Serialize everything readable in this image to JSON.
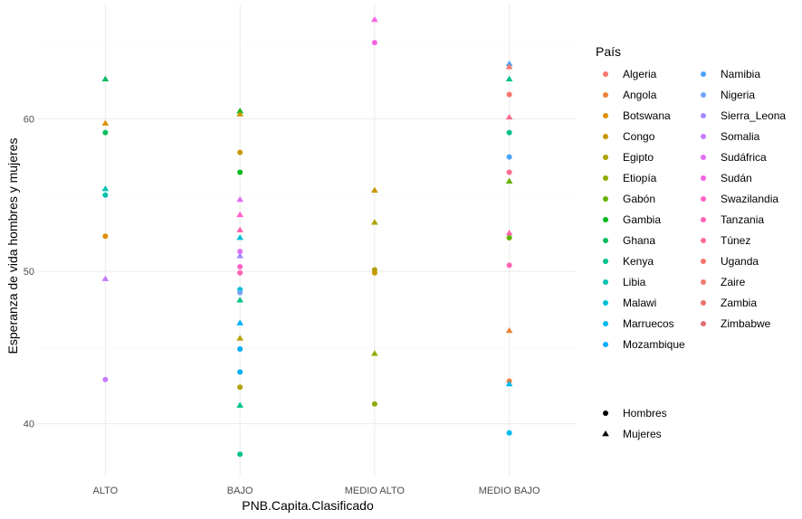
{
  "chart_data": {
    "type": "scatter",
    "xlabel": "PNB.Capita.Clasificado",
    "ylabel": "Esperanza de vida hombres y mujeres",
    "categories": [
      "ALTO",
      "BAJO",
      "MEDIO ALTO",
      "MEDIO BAJO"
    ],
    "ylim": [
      36.6,
      67.5
    ],
    "yticks": [
      40,
      50,
      60
    ],
    "grid": true,
    "legend_color_title": "País",
    "legend_placement": "right",
    "countries": [
      {
        "name": "Algeria",
        "color": "#F8766D"
      },
      {
        "name": "Angola",
        "color": "#EC8239"
      },
      {
        "name": "Botswana",
        "color": "#DB8E00"
      },
      {
        "name": "Congo",
        "color": "#C79800"
      },
      {
        "name": "Egipto",
        "color": "#AEA200"
      },
      {
        "name": "Etiopía",
        "color": "#8FAA00"
      },
      {
        "name": "Gabón",
        "color": "#64B200"
      },
      {
        "name": "Gambia",
        "color": "#00B81B"
      },
      {
        "name": "Ghana",
        "color": "#00BD5C"
      },
      {
        "name": "Kenya",
        "color": "#00C08B"
      },
      {
        "name": "Libia",
        "color": "#00C1B2"
      },
      {
        "name": "Malawi",
        "color": "#00BFD4"
      },
      {
        "name": "Marruecos",
        "color": "#00B9F1"
      },
      {
        "name": "Mozambique",
        "color": "#00ADFA"
      },
      {
        "name": "Namibia",
        "color": "#4AA2F9"
      },
      {
        "name": "Nigeria",
        "color": "#73A2FF"
      },
      {
        "name": "Sierra_Leona",
        "color": "#A58AFF"
      },
      {
        "name": "Somalia",
        "color": "#C77CFF"
      },
      {
        "name": "Sudáfrica",
        "color": "#E46DF6"
      },
      {
        "name": "Sudán",
        "color": "#F564E3"
      },
      {
        "name": "Swazilandia",
        "color": "#FF61C9"
      },
      {
        "name": "Tanzania",
        "color": "#FF64B0"
      },
      {
        "name": "Túnez",
        "color": "#FF6C91"
      },
      {
        "name": "Uganda",
        "color": "#F8766D"
      },
      {
        "name": "Zaire",
        "color": "#EE7E6B"
      },
      {
        "name": "Zambia",
        "color": "#E87368"
      },
      {
        "name": "Zimbabwe",
        "color": "#E26E73"
      }
    ],
    "shape_legend": [
      {
        "label": "Hombres",
        "shape": "circle"
      },
      {
        "label": "Mujeres",
        "shape": "triangle"
      }
    ],
    "points": [
      {
        "x": "ALTO",
        "y": 62.6,
        "shape": "triangle",
        "color": "#00BD5C"
      },
      {
        "x": "ALTO",
        "y": 59.7,
        "shape": "triangle",
        "color": "#DB8E00"
      },
      {
        "x": "ALTO",
        "y": 59.1,
        "shape": "circle",
        "color": "#00BD5C"
      },
      {
        "x": "ALTO",
        "y": 55.4,
        "shape": "triangle",
        "color": "#00C1B2"
      },
      {
        "x": "ALTO",
        "y": 55.0,
        "shape": "circle",
        "color": "#00C1B2"
      },
      {
        "x": "ALTO",
        "y": 52.3,
        "shape": "circle",
        "color": "#DB8E00"
      },
      {
        "x": "ALTO",
        "y": 49.5,
        "shape": "triangle",
        "color": "#C77CFF"
      },
      {
        "x": "ALTO",
        "y": 42.9,
        "shape": "circle",
        "color": "#C77CFF"
      },
      {
        "x": "BAJO",
        "y": 60.5,
        "shape": "triangle",
        "color": "#00B81B"
      },
      {
        "x": "BAJO",
        "y": 60.3,
        "shape": "triangle",
        "color": "#C79800"
      },
      {
        "x": "BAJO",
        "y": 57.8,
        "shape": "circle",
        "color": "#C79800"
      },
      {
        "x": "BAJO",
        "y": 56.5,
        "shape": "circle",
        "color": "#00B81B"
      },
      {
        "x": "BAJO",
        "y": 54.7,
        "shape": "triangle",
        "color": "#E46DF6"
      },
      {
        "x": "BAJO",
        "y": 53.7,
        "shape": "triangle",
        "color": "#FF61C9"
      },
      {
        "x": "BAJO",
        "y": 52.7,
        "shape": "triangle",
        "color": "#FF64B0"
      },
      {
        "x": "BAJO",
        "y": 52.2,
        "shape": "triangle",
        "color": "#00BFD4"
      },
      {
        "x": "BAJO",
        "y": 51.3,
        "shape": "circle",
        "color": "#E46DF6"
      },
      {
        "x": "BAJO",
        "y": 51.0,
        "shape": "triangle",
        "color": "#A58AFF"
      },
      {
        "x": "BAJO",
        "y": 50.3,
        "shape": "circle",
        "color": "#FF61C9"
      },
      {
        "x": "BAJO",
        "y": 49.9,
        "shape": "circle",
        "color": "#FF64B0"
      },
      {
        "x": "BAJO",
        "y": 48.8,
        "shape": "circle",
        "color": "#00BFD4"
      },
      {
        "x": "BAJO",
        "y": 48.6,
        "shape": "circle",
        "color": "#73A2FF"
      },
      {
        "x": "BAJO",
        "y": 48.1,
        "shape": "triangle",
        "color": "#00C08B"
      },
      {
        "x": "BAJO",
        "y": 46.6,
        "shape": "triangle",
        "color": "#00ADFA"
      },
      {
        "x": "BAJO",
        "y": 45.6,
        "shape": "triangle",
        "color": "#AEA200"
      },
      {
        "x": "BAJO",
        "y": 44.9,
        "shape": "circle",
        "color": "#00ADFA"
      },
      {
        "x": "BAJO",
        "y": 43.4,
        "shape": "circle",
        "color": "#00ADFA"
      },
      {
        "x": "BAJO",
        "y": 42.4,
        "shape": "circle",
        "color": "#AEA200"
      },
      {
        "x": "BAJO",
        "y": 41.2,
        "shape": "triangle",
        "color": "#00C08B"
      },
      {
        "x": "BAJO",
        "y": 38.0,
        "shape": "circle",
        "color": "#00C08B"
      },
      {
        "x": "MEDIO ALTO",
        "y": 66.5,
        "shape": "triangle",
        "color": "#F564E3"
      },
      {
        "x": "MEDIO ALTO",
        "y": 65.0,
        "shape": "circle",
        "color": "#F564E3"
      },
      {
        "x": "MEDIO ALTO",
        "y": 55.3,
        "shape": "triangle",
        "color": "#C79800"
      },
      {
        "x": "MEDIO ALTO",
        "y": 53.2,
        "shape": "triangle",
        "color": "#AEA200"
      },
      {
        "x": "MEDIO ALTO",
        "y": 50.1,
        "shape": "circle",
        "color": "#AEA200"
      },
      {
        "x": "MEDIO ALTO",
        "y": 49.9,
        "shape": "circle",
        "color": "#C79800"
      },
      {
        "x": "MEDIO ALTO",
        "y": 44.6,
        "shape": "triangle",
        "color": "#8FAA00"
      },
      {
        "x": "MEDIO ALTO",
        "y": 41.3,
        "shape": "circle",
        "color": "#8FAA00"
      },
      {
        "x": "MEDIO BAJO",
        "y": 63.6,
        "shape": "triangle",
        "color": "#4AA2F9"
      },
      {
        "x": "MEDIO BAJO",
        "y": 63.4,
        "shape": "triangle",
        "color": "#F8766D"
      },
      {
        "x": "MEDIO BAJO",
        "y": 62.6,
        "shape": "triangle",
        "color": "#00C08B"
      },
      {
        "x": "MEDIO BAJO",
        "y": 61.6,
        "shape": "circle",
        "color": "#F8766D"
      },
      {
        "x": "MEDIO BAJO",
        "y": 60.1,
        "shape": "triangle",
        "color": "#FF6C91"
      },
      {
        "x": "MEDIO BAJO",
        "y": 59.1,
        "shape": "circle",
        "color": "#00C08B"
      },
      {
        "x": "MEDIO BAJO",
        "y": 57.5,
        "shape": "circle",
        "color": "#4AA2F9"
      },
      {
        "x": "MEDIO BAJO",
        "y": 56.5,
        "shape": "circle",
        "color": "#FF6C91"
      },
      {
        "x": "MEDIO BAJO",
        "y": 55.9,
        "shape": "triangle",
        "color": "#64B200"
      },
      {
        "x": "MEDIO BAJO",
        "y": 52.5,
        "shape": "triangle",
        "color": "#FF64B0"
      },
      {
        "x": "MEDIO BAJO",
        "y": 52.2,
        "shape": "circle",
        "color": "#64B200"
      },
      {
        "x": "MEDIO BAJO",
        "y": 50.4,
        "shape": "circle",
        "color": "#FF64B0"
      },
      {
        "x": "MEDIO BAJO",
        "y": 46.1,
        "shape": "triangle",
        "color": "#EC8239"
      },
      {
        "x": "MEDIO BAJO",
        "y": 42.8,
        "shape": "circle",
        "color": "#EC8239"
      },
      {
        "x": "MEDIO BAJO",
        "y": 42.6,
        "shape": "triangle",
        "color": "#00B9F1"
      },
      {
        "x": "MEDIO BAJO",
        "y": 39.4,
        "shape": "circle",
        "color": "#00B9F1"
      }
    ]
  }
}
